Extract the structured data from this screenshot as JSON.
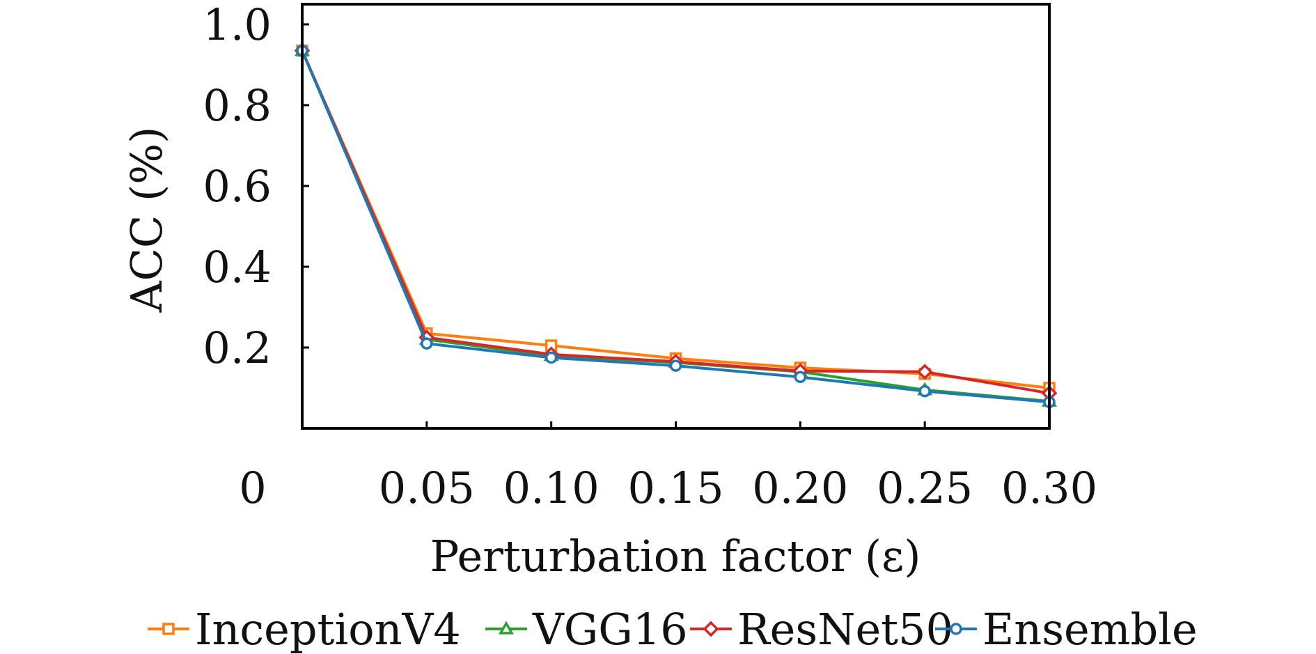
{
  "chart_data": {
    "type": "line",
    "title": "",
    "xlabel": "Perturbation factor (ε)",
    "ylabel": "ACC (%)",
    "x": [
      0,
      0.05,
      0.1,
      0.15,
      0.2,
      0.25,
      0.3
    ],
    "x_tick_labels": [
      "0",
      "0.05",
      "0.10",
      "0.15",
      "0.20",
      "0.25",
      "0.30"
    ],
    "y_ticks": [
      0.2,
      0.4,
      0.6,
      0.8,
      1.0
    ],
    "y_tick_labels": [
      "0.2",
      "0.4",
      "0.6",
      "0.8",
      "1.0"
    ],
    "xlim": [
      0,
      0.3
    ],
    "ylim": [
      0,
      1.05
    ],
    "grid": false,
    "legend_position": "bottom",
    "series": [
      {
        "name": "InceptionV4",
        "color": "#ff7f0e",
        "marker": "square",
        "values": [
          0.935,
          0.235,
          0.205,
          0.173,
          0.15,
          0.135,
          0.1
        ]
      },
      {
        "name": "VGG16",
        "color": "#2ca02c",
        "marker": "triangle",
        "values": [
          0.935,
          0.22,
          0.18,
          0.163,
          0.14,
          0.095,
          0.067
        ]
      },
      {
        "name": "ResNet50",
        "color": "#d62728",
        "marker": "diamond",
        "values": [
          0.935,
          0.225,
          0.183,
          0.165,
          0.142,
          0.14,
          0.087
        ]
      },
      {
        "name": "Ensemble",
        "color": "#1f77b4",
        "marker": "circle",
        "values": [
          0.935,
          0.21,
          0.175,
          0.155,
          0.127,
          0.092,
          0.065
        ]
      }
    ]
  }
}
